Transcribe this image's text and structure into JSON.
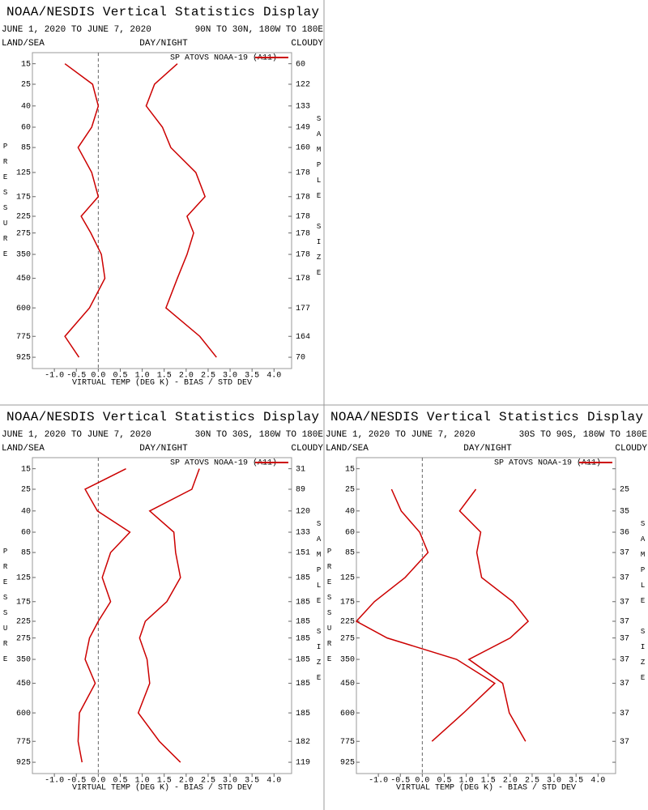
{
  "chart_data": [
    {
      "type": "line",
      "title": "NOAA/NESDIS Vertical Statistics Display",
      "subtitle": "JUNE 1, 2020 TO JUNE 7, 2020",
      "region": "90N TO 30N, 180W TO 180E",
      "left_label": "LAND/SEA",
      "center_label": "DAY/NIGHT",
      "right_label": "CLOUDY",
      "y_label": "PRESSURE",
      "y2_label": "SAMPLE SIZE",
      "x_label": "VIRTUAL TEMP (DEG K) - BIAS / STD DEV",
      "y": [
        15,
        25,
        40,
        60,
        85,
        125,
        175,
        225,
        275,
        350,
        450,
        600,
        775,
        925
      ],
      "ylim": [
        11,
        1014
      ],
      "sample_size": [
        60,
        122,
        133,
        149,
        160,
        178,
        178,
        178,
        178,
        178,
        178,
        177,
        164,
        70
      ],
      "xlim": [
        -1.5,
        4.4
      ],
      "xticks": [
        {
          "value": -1,
          "label": "-1.0"
        },
        -0.5,
        {
          "value": 0,
          "label": "0.0"
        },
        0.5,
        {
          "value": 1,
          "label": "1.0"
        },
        1.5,
        {
          "value": 2,
          "label": "2.0"
        },
        2.5,
        {
          "value": 3,
          "label": "3.0"
        },
        3.5,
        {
          "value": 4,
          "label": "4.0"
        }
      ],
      "series": [
        {
          "name": "SP ATOVS NOAA-19 (A11)",
          "color": "#cc0000",
          "values": [
            -0.76,
            -0.13,
            0.0,
            -0.15,
            -0.46,
            -0.15,
            0.0,
            -0.39,
            -0.17,
            0.07,
            0.15,
            -0.2,
            -0.76,
            -0.44
          ],
          "std_dev": [
            1.8,
            1.28,
            1.09,
            1.46,
            1.65,
            2.22,
            2.43,
            2.02,
            2.17,
            2.02,
            1.8,
            1.54,
            2.31,
            2.69
          ]
        }
      ]
    },
    {
      "type": "line",
      "title": "NOAA/NESDIS Vertical Statistics Display",
      "subtitle": "JUNE 1, 2020 TO JUNE 7, 2020",
      "region": "30N TO 30S, 180W TO 180E",
      "left_label": "LAND/SEA",
      "center_label": "DAY/NIGHT",
      "right_label": "CLOUDY",
      "y_label": "PRESSURE",
      "y2_label": "SAMPLE SIZE",
      "x_label": "VIRTUAL TEMP (DEG K) - BIAS / STD DEV",
      "y": [
        15,
        25,
        40,
        60,
        85,
        125,
        175,
        225,
        275,
        350,
        450,
        600,
        775,
        925
      ],
      "ylim": [
        11,
        1014
      ],
      "sample_size": [
        31,
        89,
        120,
        133,
        151,
        185,
        185,
        185,
        185,
        185,
        185,
        185,
        182,
        119
      ],
      "xlim": [
        -1.5,
        4.4
      ],
      "xticks": [
        {
          "value": -1,
          "label": "-1.0"
        },
        -0.5,
        {
          "value": 0,
          "label": "0.0"
        },
        0.5,
        {
          "value": 1,
          "label": "1.0"
        },
        1.5,
        {
          "value": 2,
          "label": "2.0"
        },
        2.5,
        {
          "value": 3,
          "label": "3.0"
        },
        3.5,
        {
          "value": 4,
          "label": "4.0"
        }
      ],
      "series": [
        {
          "name": "SP ATOVS NOAA-19 (A11)",
          "color": "#cc0000",
          "values": [
            0.63,
            -0.3,
            -0.02,
            0.72,
            0.28,
            0.09,
            0.28,
            0.0,
            -0.2,
            -0.3,
            -0.07,
            -0.43,
            -0.46,
            -0.37
          ],
          "std_dev": [
            2.3,
            2.13,
            1.17,
            1.72,
            1.76,
            1.87,
            1.56,
            1.07,
            0.94,
            1.11,
            1.17,
            0.91,
            1.39,
            1.87
          ]
        }
      ]
    },
    {
      "type": "line",
      "title": "NOAA/NESDIS Vertical Statistics Display",
      "subtitle": "JUNE 1, 2020 TO JUNE 7, 2020",
      "region": "30S TO 90S, 180W TO 180E",
      "left_label": "LAND/SEA",
      "center_label": "DAY/NIGHT",
      "right_label": "CLOUDY",
      "y_label": "PRESSURE",
      "y2_label": "SAMPLE SIZE",
      "x_label": "VIRTUAL TEMP (DEG K) - BIAS / STD DEV",
      "y": [
        15,
        25,
        40,
        60,
        85,
        125,
        175,
        225,
        275,
        350,
        450,
        600,
        775,
        925
      ],
      "ylim": [
        11,
        1014
      ],
      "sample_size": [
        null,
        25,
        35,
        36,
        37,
        37,
        37,
        37,
        37,
        37,
        37,
        37,
        37,
        null
      ],
      "xlim": [
        -1.5,
        4.4
      ],
      "xticks": [
        {
          "value": -1,
          "label": "-1.0"
        },
        -0.5,
        {
          "value": 0,
          "label": "0.0"
        },
        0.5,
        {
          "value": 1,
          "label": "1.0"
        },
        1.5,
        {
          "value": 2,
          "label": "2.0"
        },
        2.5,
        {
          "value": 3,
          "label": "3.0"
        },
        3.5,
        {
          "value": 4,
          "label": "4.0"
        }
      ],
      "series": [
        {
          "name": "SP ATOVS NOAA-19 (A11)",
          "color": "#cc0000",
          "values": [
            null,
            -0.7,
            -0.48,
            -0.06,
            0.13,
            -0.39,
            -1.09,
            -1.5,
            -0.8,
            0.78,
            1.65,
            0.94,
            0.22,
            null
          ],
          "std_dev": [
            null,
            1.22,
            0.85,
            1.33,
            1.24,
            1.35,
            2.06,
            2.41,
            2.0,
            1.06,
            1.83,
            1.98,
            2.35,
            null
          ]
        }
      ]
    }
  ]
}
